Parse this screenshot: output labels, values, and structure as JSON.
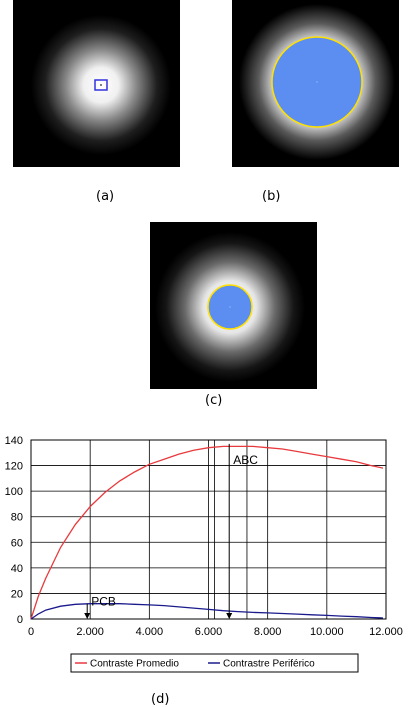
{
  "captions": {
    "a": "(a)",
    "b": "(b)",
    "c": "(c)",
    "d": "(d)"
  },
  "colors": {
    "fill_blue": "#5b8ef0",
    "outline_yellow": "#ffe000",
    "roi_box": "#3333dd",
    "series_red": "#e8393d",
    "series_blue": "#1a1a8c"
  },
  "chart_data": {
    "type": "line",
    "xlim": [
      0,
      12000
    ],
    "ylim": [
      0,
      140
    ],
    "x_ticks": [
      0,
      2000,
      4000,
      6000,
      8000,
      10000,
      12000
    ],
    "x_tick_labels": [
      "0",
      "2.000",
      "4.000",
      "6.000",
      "8.000",
      "10.000",
      "12.000"
    ],
    "y_ticks": [
      0,
      20,
      40,
      60,
      80,
      100,
      120,
      140
    ],
    "y_tick_labels": [
      "0",
      "20",
      "40",
      "60",
      "80",
      "100",
      "120",
      "140"
    ],
    "grid": true,
    "legend_position": "bottom-center",
    "series": [
      {
        "name": "Contraste Promedio",
        "x": [
          0,
          250,
          500,
          1000,
          1500,
          2000,
          2500,
          3000,
          3500,
          4000,
          4500,
          5000,
          5500,
          6000,
          6500,
          7000,
          7500,
          8000,
          8500,
          9000,
          9500,
          10000,
          10500,
          11000,
          11500,
          11900
        ],
        "y": [
          0,
          18,
          32,
          56,
          74,
          88,
          99,
          108,
          115,
          121,
          125,
          129,
          132,
          134,
          135,
          135,
          135,
          134,
          133,
          131,
          129,
          127,
          125,
          123,
          120,
          118
        ]
      },
      {
        "name": "Contrastre Periférico",
        "x": [
          0,
          250,
          500,
          1000,
          1500,
          2000,
          2500,
          3000,
          3500,
          4000,
          4500,
          5000,
          5500,
          6000,
          6500,
          7000,
          7500,
          8000,
          8500,
          9000,
          9500,
          10000,
          10500,
          11000,
          11500,
          11900
        ],
        "y": [
          0,
          4,
          7,
          10,
          11.5,
          12,
          12,
          12,
          11.5,
          11,
          10.5,
          9.5,
          8.5,
          7.5,
          6.5,
          5.8,
          5.2,
          4.8,
          4.3,
          3.8,
          3.3,
          2.8,
          2.3,
          1.8,
          1.2,
          0.8
        ]
      }
    ],
    "annotations": [
      {
        "text": "ABC",
        "x": 6700,
        "y": 137,
        "arrow_to_y": 0
      },
      {
        "text": "PCB",
        "x": 1900,
        "y": 12,
        "arrow_to_y": 0
      }
    ]
  }
}
